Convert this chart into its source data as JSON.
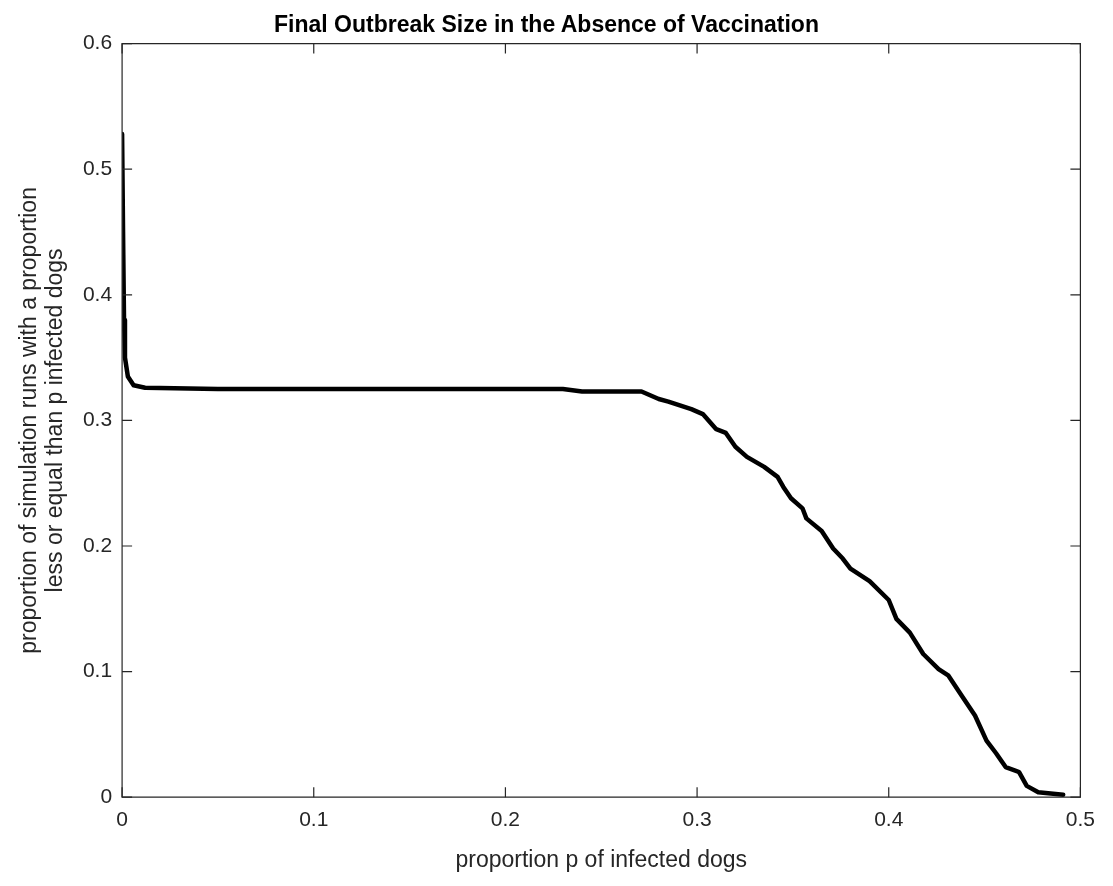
{
  "chart_data": {
    "type": "line",
    "title": "Final Outbreak Size in the Absence of Vaccination",
    "xlabel": "proportion p of infected dogs",
    "ylabel": "proportion of simulation runs with a proportion\nless or equal than p infected dogs",
    "xlim": [
      0,
      0.5
    ],
    "ylim": [
      0,
      0.6
    ],
    "xticks": [
      0,
      0.1,
      0.2,
      0.3,
      0.4,
      0.5
    ],
    "yticks": [
      0,
      0.1,
      0.2,
      0.3,
      0.4,
      0.5,
      0.6
    ],
    "grid": false,
    "legend": false,
    "marker": "none",
    "line_style": "solid",
    "series": [
      {
        "color": "#000000",
        "x": [
          0,
          0.0005,
          0.001,
          0.0015,
          0.003,
          0.006,
          0.012,
          0.05,
          0.1,
          0.15,
          0.2,
          0.23,
          0.24,
          0.271,
          0.28,
          0.285,
          0.297,
          0.303,
          0.31,
          0.315,
          0.32,
          0.326,
          0.335,
          0.342,
          0.345,
          0.349,
          0.355,
          0.357,
          0.365,
          0.371,
          0.376,
          0.38,
          0.39,
          0.4,
          0.404,
          0.411,
          0.418,
          0.426,
          0.431,
          0.438,
          0.445,
          0.451,
          0.456,
          0.461,
          0.468,
          0.472,
          0.478,
          0.491
        ],
        "values": [
          0.528,
          0.45,
          0.38,
          0.35,
          0.335,
          0.328,
          0.326,
          0.325,
          0.325,
          0.325,
          0.325,
          0.325,
          0.323,
          0.323,
          0.317,
          0.315,
          0.309,
          0.305,
          0.293,
          0.29,
          0.279,
          0.271,
          0.263,
          0.255,
          0.247,
          0.238,
          0.23,
          0.222,
          0.212,
          0.198,
          0.19,
          0.182,
          0.172,
          0.157,
          0.142,
          0.131,
          0.114,
          0.102,
          0.097,
          0.081,
          0.065,
          0.045,
          0.035,
          0.024,
          0.02,
          0.009,
          0.004,
          0.002
        ]
      }
    ]
  }
}
